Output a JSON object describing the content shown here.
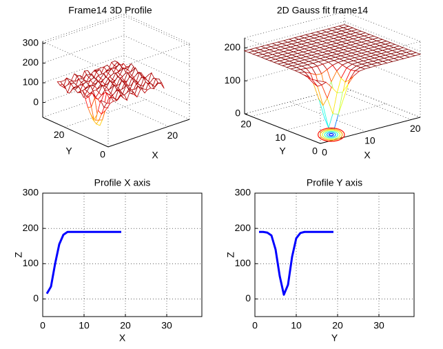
{
  "chart_data": [
    {
      "type": "surface",
      "title": "Frame14 3D Profile",
      "xlabel": "X",
      "ylabel": "Y",
      "xlim": [
        0,
        27
      ],
      "ylim": [
        0,
        30
      ],
      "zlim": [
        -75,
        310
      ],
      "xticks": [
        20
      ],
      "yticks": [
        0,
        20
      ],
      "zticks": [
        0,
        100,
        200,
        300
      ],
      "grid": true
    },
    {
      "type": "surface",
      "title": "2D Gauss fit frame14",
      "xlabel": "X",
      "ylabel": "Y",
      "xlim": [
        0,
        22
      ],
      "ylim": [
        0,
        22
      ],
      "zlim": [
        0,
        230
      ],
      "xticks": [
        0,
        10,
        20
      ],
      "yticks": [
        0,
        10,
        20
      ],
      "zticks": [
        0,
        100,
        200
      ],
      "grid": true
    },
    {
      "type": "line",
      "title": "Profile X axis",
      "xlabel": "X",
      "ylabel": "Z",
      "x": [
        1,
        2,
        3,
        4,
        5,
        6,
        7,
        8,
        9,
        10,
        11,
        12,
        13,
        14,
        15,
        16,
        17,
        18,
        19
      ],
      "values": [
        15,
        35,
        100,
        155,
        182,
        190,
        190,
        190,
        190,
        190,
        190,
        190,
        190,
        190,
        190,
        190,
        190,
        190,
        190
      ],
      "color": "#0000ff",
      "xlim": [
        0,
        38.5
      ],
      "ylim": [
        -50,
        300
      ],
      "xticks": [
        0,
        10,
        20,
        30
      ],
      "yticks": [
        0,
        100,
        200,
        300
      ],
      "grid": true
    },
    {
      "type": "line",
      "title": "Profile Y axis",
      "xlabel": "Y",
      "ylabel": "Z",
      "x": [
        1,
        2,
        3,
        4,
        5,
        6,
        7,
        8,
        9,
        10,
        11,
        12,
        13,
        14,
        15,
        16,
        17,
        18,
        19
      ],
      "values": [
        190,
        190,
        188,
        180,
        140,
        65,
        12,
        40,
        120,
        172,
        187,
        190,
        190,
        190,
        190,
        190,
        190,
        190,
        190
      ],
      "color": "#0000ff",
      "xlim": [
        0,
        38.5
      ],
      "ylim": [
        -50,
        300
      ],
      "xticks": [
        0,
        10,
        20,
        30
      ],
      "yticks": [
        0,
        100,
        200,
        300
      ],
      "grid": true
    }
  ]
}
